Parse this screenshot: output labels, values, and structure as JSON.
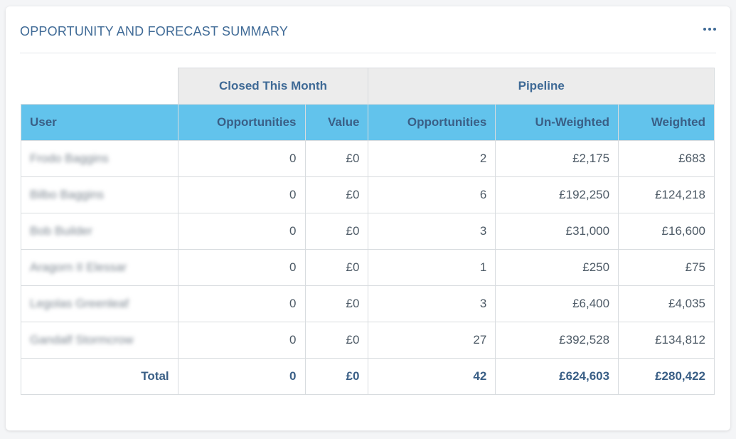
{
  "header": {
    "title": "OPPORTUNITY AND FORECAST SUMMARY",
    "more_icon": "more-horizontal-icon"
  },
  "colors": {
    "title": "#3f6a96",
    "group_header_bg": "#ececec",
    "column_header_bg": "#62c3ec"
  },
  "table": {
    "groups": [
      "Closed This Month",
      "Pipeline"
    ],
    "columns": [
      "User",
      "Opportunities",
      "Value",
      "Opportunities",
      "Un-Weighted",
      "Weighted"
    ],
    "rows": [
      {
        "user": "Frodo Baggins",
        "closed_opps": "0",
        "closed_value": "£0",
        "pipeline_opps": "2",
        "unweighted": "£2,175",
        "weighted": "£683"
      },
      {
        "user": "Bilbo Baggins",
        "closed_opps": "0",
        "closed_value": "£0",
        "pipeline_opps": "6",
        "unweighted": "£192,250",
        "weighted": "£124,218"
      },
      {
        "user": "Bob Builder",
        "closed_opps": "0",
        "closed_value": "£0",
        "pipeline_opps": "3",
        "unweighted": "£31,000",
        "weighted": "£16,600"
      },
      {
        "user": "Aragorn II Elessar",
        "closed_opps": "0",
        "closed_value": "£0",
        "pipeline_opps": "1",
        "unweighted": "£250",
        "weighted": "£75"
      },
      {
        "user": "Legolas Greenleaf",
        "closed_opps": "0",
        "closed_value": "£0",
        "pipeline_opps": "3",
        "unweighted": "£6,400",
        "weighted": "£4,035"
      },
      {
        "user": "Gandalf Stormcrow",
        "closed_opps": "0",
        "closed_value": "£0",
        "pipeline_opps": "27",
        "unweighted": "£392,528",
        "weighted": "£134,812"
      }
    ],
    "total": {
      "label": "Total",
      "closed_opps": "0",
      "closed_value": "£0",
      "pipeline_opps": "42",
      "unweighted": "£624,603",
      "weighted": "£280,422"
    }
  }
}
